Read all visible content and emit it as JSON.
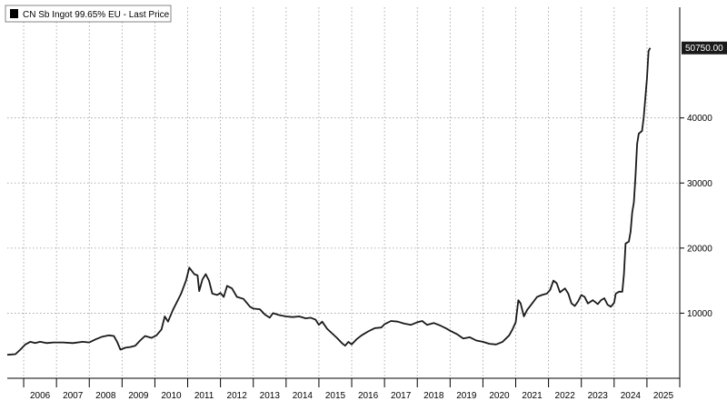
{
  "chart_data": {
    "type": "line",
    "legend": {
      "placement": "top-left",
      "swatch_color": "#000000"
    },
    "series": [
      {
        "name": "CN Sb Ingot 99.65% EU - Last Price",
        "color": "#1a1a1a",
        "last_value_label": "50750.00",
        "points": [
          [
            2005.5,
            3600
          ],
          [
            2005.75,
            3700
          ],
          [
            2005.9,
            4400
          ],
          [
            2006.05,
            5200
          ],
          [
            2006.2,
            5600
          ],
          [
            2006.35,
            5400
          ],
          [
            2006.5,
            5600
          ],
          [
            2006.7,
            5400
          ],
          [
            2006.9,
            5500
          ],
          [
            2007.2,
            5500
          ],
          [
            2007.5,
            5400
          ],
          [
            2007.8,
            5600
          ],
          [
            2008.0,
            5500
          ],
          [
            2008.2,
            6000
          ],
          [
            2008.4,
            6400
          ],
          [
            2008.6,
            6600
          ],
          [
            2008.75,
            6500
          ],
          [
            2008.85,
            5600
          ],
          [
            2008.95,
            4400
          ],
          [
            2009.1,
            4700
          ],
          [
            2009.25,
            4800
          ],
          [
            2009.4,
            5000
          ],
          [
            2009.55,
            5800
          ],
          [
            2009.7,
            6500
          ],
          [
            2009.9,
            6200
          ],
          [
            2010.05,
            6600
          ],
          [
            2010.2,
            7500
          ],
          [
            2010.3,
            9500
          ],
          [
            2010.4,
            8700
          ],
          [
            2010.55,
            10500
          ],
          [
            2010.7,
            12000
          ],
          [
            2010.8,
            13000
          ],
          [
            2010.95,
            15000
          ],
          [
            2011.05,
            17000
          ],
          [
            2011.2,
            16000
          ],
          [
            2011.3,
            15800
          ],
          [
            2011.35,
            13400
          ],
          [
            2011.45,
            15200
          ],
          [
            2011.55,
            16000
          ],
          [
            2011.65,
            15000
          ],
          [
            2011.75,
            13000
          ],
          [
            2011.9,
            12800
          ],
          [
            2012.0,
            13100
          ],
          [
            2012.1,
            12500
          ],
          [
            2012.2,
            14200
          ],
          [
            2012.35,
            13800
          ],
          [
            2012.5,
            12500
          ],
          [
            2012.7,
            12200
          ],
          [
            2012.9,
            11000
          ],
          [
            2013.0,
            10700
          ],
          [
            2013.2,
            10600
          ],
          [
            2013.35,
            9800
          ],
          [
            2013.5,
            9300
          ],
          [
            2013.6,
            10000
          ],
          [
            2013.8,
            9700
          ],
          [
            2014.0,
            9500
          ],
          [
            2014.2,
            9400
          ],
          [
            2014.4,
            9500
          ],
          [
            2014.6,
            9200
          ],
          [
            2014.75,
            9300
          ],
          [
            2014.9,
            9000
          ],
          [
            2015.0,
            8200
          ],
          [
            2015.1,
            8700
          ],
          [
            2015.25,
            7600
          ],
          [
            2015.4,
            6900
          ],
          [
            2015.55,
            6200
          ],
          [
            2015.7,
            5400
          ],
          [
            2015.8,
            5000
          ],
          [
            2015.9,
            5600
          ],
          [
            2016.0,
            5200
          ],
          [
            2016.15,
            6000
          ],
          [
            2016.3,
            6600
          ],
          [
            2016.5,
            7200
          ],
          [
            2016.7,
            7700
          ],
          [
            2016.9,
            7800
          ],
          [
            2017.0,
            8300
          ],
          [
            2017.2,
            8800
          ],
          [
            2017.4,
            8700
          ],
          [
            2017.6,
            8400
          ],
          [
            2017.8,
            8200
          ],
          [
            2018.0,
            8600
          ],
          [
            2018.15,
            8800
          ],
          [
            2018.3,
            8200
          ],
          [
            2018.5,
            8500
          ],
          [
            2018.7,
            8100
          ],
          [
            2018.9,
            7600
          ],
          [
            2019.0,
            7300
          ],
          [
            2019.2,
            6800
          ],
          [
            2019.4,
            6100
          ],
          [
            2019.6,
            6300
          ],
          [
            2019.8,
            5800
          ],
          [
            2020.0,
            5600
          ],
          [
            2020.2,
            5300
          ],
          [
            2020.4,
            5200
          ],
          [
            2020.6,
            5600
          ],
          [
            2020.8,
            6600
          ],
          [
            2020.9,
            7500
          ],
          [
            2021.0,
            8600
          ],
          [
            2021.08,
            12000
          ],
          [
            2021.15,
            11500
          ],
          [
            2021.25,
            9500
          ],
          [
            2021.35,
            10500
          ],
          [
            2021.5,
            11500
          ],
          [
            2021.65,
            12500
          ],
          [
            2021.8,
            12800
          ],
          [
            2021.95,
            13000
          ],
          [
            2022.05,
            13600
          ],
          [
            2022.15,
            15000
          ],
          [
            2022.25,
            14600
          ],
          [
            2022.35,
            13200
          ],
          [
            2022.5,
            13800
          ],
          [
            2022.6,
            13000
          ],
          [
            2022.7,
            11500
          ],
          [
            2022.8,
            11100
          ],
          [
            2022.9,
            11800
          ],
          [
            2023.0,
            12800
          ],
          [
            2023.1,
            12500
          ],
          [
            2023.2,
            11500
          ],
          [
            2023.35,
            12000
          ],
          [
            2023.5,
            11400
          ],
          [
            2023.6,
            12000
          ],
          [
            2023.7,
            12300
          ],
          [
            2023.8,
            11300
          ],
          [
            2023.9,
            11000
          ],
          [
            2024.0,
            11600
          ],
          [
            2024.05,
            13000
          ],
          [
            2024.15,
            13300
          ],
          [
            2024.25,
            13300
          ],
          [
            2024.3,
            16000
          ],
          [
            2024.35,
            20700
          ],
          [
            2024.45,
            21000
          ],
          [
            2024.5,
            22500
          ],
          [
            2024.55,
            25500
          ],
          [
            2024.6,
            27000
          ],
          [
            2024.65,
            31000
          ],
          [
            2024.7,
            36000
          ],
          [
            2024.75,
            37600
          ],
          [
            2024.85,
            38000
          ],
          [
            2024.9,
            40000
          ],
          [
            2024.95,
            43000
          ],
          [
            2025.0,
            46000
          ],
          [
            2025.05,
            50300
          ],
          [
            2025.1,
            50750
          ]
        ]
      }
    ],
    "x_axis": {
      "range": [
        2005.5,
        2026.0
      ],
      "tick_labels": [
        "2006",
        "2007",
        "2008",
        "2009",
        "2010",
        "2011",
        "2012",
        "2013",
        "2014",
        "2015",
        "2016",
        "2017",
        "2018",
        "2019",
        "2020",
        "2021",
        "2022",
        "2023",
        "2024",
        "2025"
      ]
    },
    "y_axis": {
      "range": [
        0,
        57000
      ],
      "position": "right",
      "ticks": [
        10000,
        20000,
        30000,
        40000
      ],
      "tick_labels": [
        "10000",
        "20000",
        "30000",
        "40000"
      ]
    },
    "grid": true
  }
}
